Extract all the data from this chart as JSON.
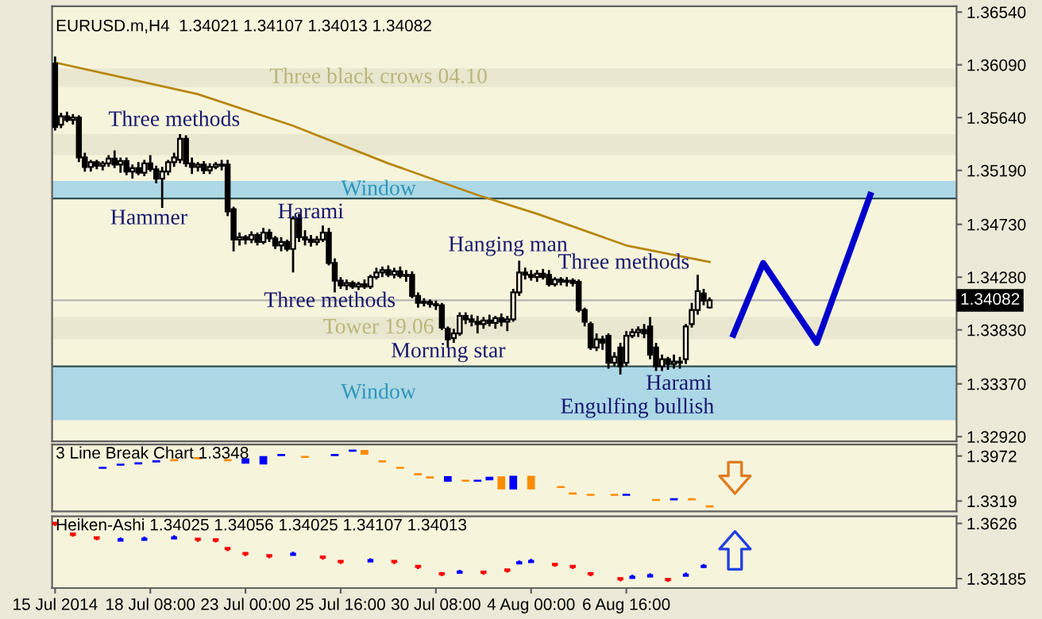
{
  "chart_data": [
    {
      "type": "candlestick",
      "title": "EURUSD.m,H4  1.34021 1.34107 1.34013 1.34082",
      "color": "#000000",
      "categories": [
        null,
        null,
        null,
        null,
        null,
        null,
        null,
        null,
        null,
        null,
        null,
        null,
        null,
        null,
        null,
        null,
        null,
        null,
        null,
        null,
        null,
        null,
        null,
        null,
        null,
        null,
        null,
        null,
        null,
        null,
        null,
        null,
        null,
        null,
        null,
        null,
        null,
        null,
        null,
        null,
        null,
        null,
        null,
        null,
        null,
        null,
        null,
        null,
        null,
        null,
        null,
        null,
        null,
        null,
        null,
        null,
        null,
        null,
        null,
        null,
        null,
        null,
        null,
        null,
        null,
        null,
        null,
        null,
        null,
        null,
        null,
        null,
        null,
        null,
        null,
        null,
        null,
        null,
        null,
        null,
        null,
        null,
        null,
        null,
        null,
        null,
        null,
        null,
        null,
        null,
        null,
        null,
        null,
        null,
        null,
        null,
        null,
        null,
        null,
        null,
        null,
        null,
        null,
        null,
        null,
        null,
        null,
        null,
        null,
        null,
        null,
        null,
        null,
        null,
        null,
        null,
        null,
        null,
        null,
        null,
        null,
        null,
        null,
        null,
        null,
        null,
        null,
        null,
        null,
        null,
        null,
        null,
        null,
        null,
        null,
        null,
        null,
        null,
        null,
        null,
        null,
        null,
        null,
        null,
        null,
        null,
        null,
        null,
        null,
        null,
        null,
        null
      ],
      "ohlc": [
        [
          1.361,
          1.3616,
          1.3553,
          1.3556
        ],
        [
          1.3558,
          1.3568,
          1.3555,
          1.3565
        ],
        [
          1.3565,
          1.3569,
          1.356,
          1.3562
        ],
        [
          1.3562,
          1.3567,
          1.3558,
          1.3564
        ],
        [
          1.3564,
          1.3566,
          1.3526,
          1.353
        ],
        [
          1.353,
          1.3534,
          1.3518,
          1.3522
        ],
        [
          1.3522,
          1.3528,
          1.3518,
          1.3526
        ],
        [
          1.3526,
          1.3528,
          1.352,
          1.3523
        ],
        [
          1.3523,
          1.3527,
          1.3519,
          1.3525
        ],
        [
          1.3525,
          1.3532,
          1.3522,
          1.3529
        ],
        [
          1.3529,
          1.3536,
          1.3521,
          1.3524
        ],
        [
          1.3524,
          1.353,
          1.3517,
          1.3527
        ],
        [
          1.3527,
          1.353,
          1.3515,
          1.3518
        ],
        [
          1.3518,
          1.3524,
          1.3512,
          1.3521
        ],
        [
          1.3521,
          1.3526,
          1.3515,
          1.3517
        ],
        [
          1.3517,
          1.3528,
          1.3514,
          1.3525
        ],
        [
          1.3525,
          1.3532,
          1.3518,
          1.352
        ],
        [
          1.352,
          1.3523,
          1.3508,
          1.3512
        ],
        [
          1.3512,
          1.3522,
          1.3487,
          1.3518
        ],
        [
          1.3518,
          1.3528,
          1.3515,
          1.3526
        ],
        [
          1.3526,
          1.3534,
          1.3522,
          1.353
        ],
        [
          1.3528,
          1.355,
          1.3525,
          1.3546
        ],
        [
          1.3546,
          1.3549,
          1.3522,
          1.3525
        ],
        [
          1.3525,
          1.353,
          1.3516,
          1.3522
        ],
        [
          1.3522,
          1.3526,
          1.3518,
          1.3524
        ],
        [
          1.3524,
          1.3527,
          1.3516,
          1.3519
        ],
        [
          1.3519,
          1.3525,
          1.3516,
          1.3522
        ],
        [
          1.3522,
          1.3526,
          1.352,
          1.3524
        ],
        [
          1.3524,
          1.3528,
          1.3519,
          1.3523
        ],
        [
          1.3524,
          1.3528,
          1.348,
          1.3484
        ],
        [
          1.3486,
          1.3488,
          1.345,
          1.346
        ],
        [
          1.346,
          1.3466,
          1.3455,
          1.3462
        ],
        [
          1.3462,
          1.3464,
          1.3456,
          1.346
        ],
        [
          1.346,
          1.3467,
          1.3457,
          1.3464
        ],
        [
          1.3464,
          1.3466,
          1.3455,
          1.3458
        ],
        [
          1.3458,
          1.347,
          1.3456,
          1.3466
        ],
        [
          1.3466,
          1.3469,
          1.3458,
          1.3461
        ],
        [
          1.3461,
          1.3463,
          1.3452,
          1.3455
        ],
        [
          1.3455,
          1.3462,
          1.345,
          1.3458
        ],
        [
          1.3458,
          1.346,
          1.345,
          1.3452
        ],
        [
          1.3452,
          1.348,
          1.3432,
          1.3478
        ],
        [
          1.3478,
          1.3482,
          1.3458,
          1.3462
        ],
        [
          1.3462,
          1.3468,
          1.3455,
          1.346
        ],
        [
          1.346,
          1.3464,
          1.3454,
          1.3458
        ],
        [
          1.3458,
          1.3463,
          1.3455,
          1.346
        ],
        [
          1.346,
          1.3472,
          1.3458,
          1.3466
        ],
        [
          1.3466,
          1.347,
          1.3438,
          1.344
        ],
        [
          1.344,
          1.3444,
          1.3415,
          1.3425
        ],
        [
          1.3425,
          1.3428,
          1.3418,
          1.3421
        ],
        [
          1.3421,
          1.3426,
          1.3417,
          1.3423
        ],
        [
          1.3423,
          1.3425,
          1.3418,
          1.342
        ],
        [
          1.342,
          1.3424,
          1.3417,
          1.3422
        ],
        [
          1.3422,
          1.3426,
          1.3418,
          1.342
        ],
        [
          1.342,
          1.343,
          1.3418,
          1.3428
        ],
        [
          1.3428,
          1.3436,
          1.3426,
          1.3432
        ],
        [
          1.3432,
          1.3437,
          1.3428,
          1.3434
        ],
        [
          1.3434,
          1.3438,
          1.3428,
          1.343
        ],
        [
          1.343,
          1.3436,
          1.3427,
          1.3433
        ],
        [
          1.3433,
          1.3437,
          1.3427,
          1.3429
        ],
        [
          1.3429,
          1.3434,
          1.3424,
          1.343
        ],
        [
          1.343,
          1.3433,
          1.341,
          1.3412
        ],
        [
          1.3412,
          1.3415,
          1.3402,
          1.3406
        ],
        [
          1.3406,
          1.341,
          1.3403,
          1.3407
        ],
        [
          1.3407,
          1.3409,
          1.3402,
          1.3405
        ],
        [
          1.3405,
          1.3408,
          1.34,
          1.3404
        ],
        [
          1.3404,
          1.3406,
          1.3383,
          1.3385
        ],
        [
          1.3384,
          1.3386,
          1.3368,
          1.3375
        ],
        [
          1.3376,
          1.3384,
          1.3372,
          1.338
        ],
        [
          1.338,
          1.3398,
          1.3378,
          1.3395
        ],
        [
          1.3395,
          1.3398,
          1.3388,
          1.3392
        ],
        [
          1.3392,
          1.3396,
          1.3386,
          1.339
        ],
        [
          1.339,
          1.3395,
          1.338,
          1.3388
        ],
        [
          1.3388,
          1.3394,
          1.3384,
          1.3391
        ],
        [
          1.3391,
          1.3396,
          1.3386,
          1.3389
        ],
        [
          1.3389,
          1.3395,
          1.3384,
          1.3393
        ],
        [
          1.3393,
          1.3397,
          1.3386,
          1.339
        ],
        [
          1.339,
          1.3395,
          1.3382,
          1.3392
        ],
        [
          1.3392,
          1.3418,
          1.339,
          1.3415
        ],
        [
          1.3415,
          1.3442,
          1.3412,
          1.3432
        ],
        [
          1.3432,
          1.3436,
          1.3426,
          1.343
        ],
        [
          1.343,
          1.3434,
          1.3425,
          1.3428
        ],
        [
          1.3428,
          1.3434,
          1.3424,
          1.3431
        ],
        [
          1.3431,
          1.3435,
          1.3426,
          1.3428
        ],
        [
          1.343,
          1.3434,
          1.342,
          1.3422
        ],
        [
          1.3422,
          1.3428,
          1.342,
          1.3426
        ],
        [
          1.3426,
          1.3428,
          1.3421,
          1.3424
        ],
        [
          1.3424,
          1.3428,
          1.342,
          1.3425
        ],
        [
          1.3425,
          1.3427,
          1.342,
          1.3423
        ],
        [
          1.3424,
          1.3426,
          1.3398,
          1.34
        ],
        [
          1.34,
          1.3402,
          1.3386,
          1.339
        ],
        [
          1.3388,
          1.339,
          1.3366,
          1.3368
        ],
        [
          1.3368,
          1.338,
          1.3365,
          1.3375
        ],
        [
          1.3375,
          1.3378,
          1.3366,
          1.3372
        ],
        [
          1.3378,
          1.338,
          1.335,
          1.3355
        ],
        [
          1.3355,
          1.3364,
          1.3352,
          1.336
        ],
        [
          1.3368,
          1.3372,
          1.3345,
          1.3352
        ],
        [
          1.3355,
          1.3382,
          1.3352,
          1.3378
        ],
        [
          1.3378,
          1.3384,
          1.3376,
          1.3381
        ],
        [
          1.3381,
          1.3386,
          1.3377,
          1.3383
        ],
        [
          1.3383,
          1.3388,
          1.3376,
          1.338
        ],
        [
          1.3386,
          1.3394,
          1.3358,
          1.3362
        ],
        [
          1.3368,
          1.3372,
          1.3348,
          1.3352
        ],
        [
          1.3352,
          1.3362,
          1.3348,
          1.3358
        ],
        [
          1.3358,
          1.336,
          1.3349,
          1.3354
        ],
        [
          1.3354,
          1.3362,
          1.335,
          1.3356
        ],
        [
          1.3356,
          1.336,
          1.335,
          1.3355
        ],
        [
          1.3358,
          1.3388,
          1.3354,
          1.3386
        ],
        [
          1.3388,
          1.3406,
          1.3385,
          1.34
        ],
        [
          1.34,
          1.343,
          1.3396,
          1.3416
        ],
        [
          1.3414,
          1.3418,
          1.3404,
          1.3408
        ],
        [
          1.34021,
          1.34107,
          1.34013,
          1.34082
        ],
        null,
        null,
        null,
        null,
        null,
        null,
        null,
        null,
        null,
        null,
        null,
        null,
        null,
        null,
        null,
        null,
        null,
        null,
        null,
        null,
        null,
        null,
        null,
        null,
        null,
        null,
        null,
        null,
        null,
        null,
        null,
        null,
        null,
        null,
        null,
        null,
        null,
        null,
        null,
        null,
        null
      ],
      "series": [
        {
          "type": "line",
          "color": "#b8860b",
          "values": [
            1.3611,
            null,
            null,
            null,
            null,
            null,
            null,
            null,
            null,
            null,
            null,
            null,
            null,
            null,
            null,
            null,
            null,
            null,
            null,
            null,
            null,
            null,
            null,
            null,
            1.3584,
            null,
            null,
            null,
            null,
            null,
            null,
            null,
            null,
            null,
            null,
            null,
            null,
            null,
            null,
            null,
            1.3557,
            null,
            null,
            null,
            null,
            null,
            null,
            null,
            null,
            null,
            null,
            null,
            null,
            null,
            null,
            null,
            1.3525,
            null,
            null,
            null,
            null,
            null,
            null,
            null,
            null,
            null,
            null,
            null,
            null,
            null,
            null,
            1.3498,
            null,
            null,
            null,
            null,
            null,
            null,
            null,
            null,
            null,
            1.3482,
            null,
            null,
            null,
            null,
            null,
            null,
            null,
            null,
            null,
            null,
            null,
            null,
            null,
            null,
            1.3455,
            null,
            null,
            null,
            null,
            null,
            null,
            null,
            null,
            null,
            null,
            null,
            null,
            null,
            1.3441,
            null,
            null,
            null,
            null,
            null,
            null,
            null,
            null,
            null,
            null,
            null,
            null,
            null,
            null,
            null,
            null,
            null,
            null,
            null,
            null,
            null,
            null,
            null,
            null,
            null,
            null,
            null,
            null,
            null,
            null,
            null,
            null,
            null,
            null,
            null,
            null,
            null,
            null,
            null,
            null,
            null
          ]
        },
        {
          "type": "line",
          "color": "#0000cc",
          "values": [
            null,
            null,
            null,
            null,
            null,
            null,
            null,
            null,
            null,
            null,
            null,
            null,
            null,
            null,
            null,
            null,
            null,
            null,
            null,
            null,
            null,
            null,
            null,
            null,
            null,
            null,
            null,
            null,
            null,
            null,
            null,
            null,
            null,
            null,
            null,
            null,
            null,
            null,
            null,
            null,
            null,
            null,
            null,
            null,
            null,
            null,
            null,
            null,
            null,
            null,
            null,
            null,
            null,
            null,
            null,
            null,
            null,
            null,
            null,
            null,
            null,
            null,
            null,
            null,
            null,
            null,
            null,
            null,
            null,
            null,
            null,
            null,
            null,
            null,
            null,
            null,
            null,
            null,
            null,
            null,
            null,
            null,
            null,
            null,
            null,
            null,
            null,
            null,
            null,
            null,
            null,
            null,
            null,
            null,
            null,
            null,
            null,
            null,
            null,
            null,
            null,
            null,
            null,
            null,
            null,
            null,
            null,
            null,
            null,
            null,
            null,
            null,
            null,
            null,
            1.3379,
            null,
            null,
            null,
            null,
            1.344,
            null,
            null,
            null,
            null,
            null,
            null,
            null,
            null,
            1.3372,
            null,
            null,
            null,
            null,
            null,
            null,
            null,
            null,
            1.3498,
            null,
            null,
            null,
            null,
            null,
            null,
            null,
            null,
            null,
            null,
            null,
            null,
            null,
            null
          ]
        }
      ],
      "ylim": [
        1.3288,
        1.3659
      ],
      "yticks": [
        {
          "value": 1.3654,
          "label": "1.36540"
        },
        {
          "value": 1.3609,
          "label": "1.36090"
        },
        {
          "value": 1.3564,
          "label": "1.35640"
        },
        {
          "value": 1.3519,
          "label": "1.35190"
        },
        {
          "value": 1.3473,
          "label": "1.34730"
        },
        {
          "value": 1.3428,
          "label": "1.34280"
        },
        {
          "value": 1.3383,
          "label": "1.33830"
        },
        {
          "value": 1.3337,
          "label": "1.33370"
        },
        {
          "value": 1.3292,
          "label": "1.32920"
        }
      ],
      "tick_labels": "y",
      "bands": [
        {
          "axis": "y",
          "from": 1.3495,
          "to": 1.351,
          "color": "#add8e6",
          "label": "Window"
        },
        {
          "axis": "y",
          "from": 1.3306,
          "to": 1.3352,
          "color": "#add8e6",
          "label": "Window"
        },
        {
          "axis": "y",
          "from": 1.359,
          "to": 1.3606,
          "color": "#e9e7cf",
          "label": "Three black crows 04.10"
        },
        {
          "axis": "y",
          "from": 1.3532,
          "to": 1.355,
          "color": "#e9e7cf"
        },
        {
          "axis": "y",
          "from": 1.3375,
          "to": 1.3394,
          "color": "#e9e7cf",
          "label": "Tower 19.06"
        }
      ],
      "ref_lines": [
        {
          "axis": "y",
          "value": 1.34082,
          "label": "1.34082",
          "color": "#b4b4b4"
        },
        {
          "axis": "y",
          "value": 1.3495,
          "color": "#2f4f4f"
        },
        {
          "axis": "y",
          "value": 1.3352,
          "color": "#2f4f4f"
        }
      ],
      "annotations": [
        "Three methods",
        "Hammer",
        "Harami",
        "Three methods",
        "Hanging man",
        "Morning star",
        "Three methods",
        "Harami",
        "Engulfing bullish"
      ]
    },
    {
      "type": "bar",
      "title": "3 Line Break Chart 1.3348",
      "categories": [
        null,
        null,
        null,
        null,
        null,
        null,
        null,
        null,
        null,
        null,
        null,
        null,
        null,
        null,
        null,
        null,
        null,
        null,
        null,
        null,
        null,
        null,
        null,
        null,
        null,
        null,
        null,
        null,
        null,
        null,
        null,
        null,
        null,
        null,
        null,
        null,
        null,
        null,
        null,
        null,
        null,
        null,
        null,
        null,
        null,
        null,
        null,
        null,
        null,
        null,
        null,
        null,
        null,
        null,
        null,
        null,
        null,
        null,
        null,
        null,
        null,
        null,
        null,
        null,
        null,
        null,
        null,
        null,
        null,
        null,
        null,
        null,
        null,
        null,
        null,
        null,
        null,
        null,
        null,
        null,
        null,
        null,
        null,
        null,
        null,
        null,
        null,
        null,
        null,
        null,
        null,
        null,
        null,
        null,
        null,
        null,
        null,
        null,
        null,
        null,
        null,
        null,
        null,
        null,
        null,
        null,
        null,
        null,
        null,
        null,
        null,
        null,
        null,
        null,
        null,
        null,
        null,
        null,
        null,
        null,
        null,
        null,
        null,
        null,
        null,
        null,
        null,
        null,
        null,
        null,
        null,
        null,
        null,
        null,
        null,
        null,
        null,
        null,
        null,
        null,
        null,
        null,
        null,
        null,
        null,
        null,
        null,
        null,
        null,
        null,
        null,
        null
      ],
      "base": [
        null,
        null,
        null,
        null,
        null,
        null,
        null,
        null,
        1.3786,
        null,
        null,
        1.3832,
        null,
        null,
        1.3851,
        null,
        null,
        1.3879,
        null,
        null,
        1.3897,
        null,
        null,
        null,
        1.3925,
        null,
        null,
        null,
        null,
        1.3897,
        null,
        null,
        1.386,
        null,
        null,
        1.3851,
        null,
        null,
        1.3972,
        null,
        null,
        null,
        1.3944,
        null,
        null,
        null,
        null,
        1.3972,
        null,
        null,
        1.4035,
        null,
        1.399,
        null,
        null,
        1.3879,
        null,
        null,
        1.3786,
        null,
        null,
        1.3692,
        null,
        1.3646,
        null,
        null,
        1.3599,
        null,
        null,
        1.3599,
        null,
        1.3599,
        null,
        1.362,
        null,
        1.3487,
        null,
        1.3487,
        null,
        null,
        1.3487,
        null,
        null,
        null,
        null,
        1.3506,
        null,
        1.3413,
        null,
        null,
        1.3394,
        null,
        null,
        null,
        1.3394,
        null,
        1.3394,
        null,
        null,
        null,
        null,
        1.332,
        null,
        null,
        1.333,
        null,
        null,
        1.333,
        null,
        null,
        1.3226,
        null,
        null,
        null,
        null,
        null,
        null,
        null,
        null,
        null,
        null,
        null,
        null,
        null,
        null,
        null,
        null,
        null,
        null,
        null,
        null,
        null,
        null,
        null,
        null,
        null,
        null,
        null,
        null,
        null,
        null,
        null,
        null,
        null,
        null,
        null,
        null,
        null,
        null,
        null,
        null,
        null
      ],
      "values": [
        null,
        null,
        null,
        null,
        null,
        null,
        null,
        null,
        0.003,
        null,
        null,
        0.003,
        null,
        null,
        0.003,
        null,
        null,
        0.003,
        null,
        null,
        0.003,
        null,
        null,
        null,
        0.003,
        null,
        null,
        null,
        null,
        0.003,
        null,
        null,
        0.008,
        null,
        null,
        0.012,
        null,
        null,
        0.003,
        null,
        null,
        null,
        0.003,
        null,
        null,
        null,
        null,
        0.003,
        null,
        null,
        0.003,
        null,
        0.007,
        null,
        null,
        0.003,
        null,
        null,
        0.003,
        null,
        null,
        0.003,
        null,
        0.003,
        null,
        null,
        0.008,
        null,
        null,
        0.003,
        null,
        0.003,
        null,
        0.005,
        null,
        0.019,
        null,
        0.02,
        null,
        null,
        0.02,
        null,
        null,
        null,
        null,
        0.003,
        null,
        0.003,
        null,
        null,
        0.003,
        null,
        null,
        null,
        0.003,
        null,
        0.003,
        null,
        null,
        null,
        null,
        0.003,
        null,
        null,
        0.003,
        null,
        null,
        0.003,
        null,
        null,
        0.003,
        null,
        null,
        null,
        null,
        null,
        null,
        null,
        null,
        null,
        null,
        null,
        null,
        null,
        null,
        null,
        null,
        null,
        null,
        null,
        null,
        null,
        null,
        null,
        null,
        null,
        null,
        null,
        null,
        null,
        null,
        null,
        null,
        null,
        null,
        null,
        null,
        null,
        null,
        null,
        null,
        null
      ],
      "colors": [
        null,
        null,
        null,
        null,
        null,
        null,
        null,
        null,
        "#0000ff",
        null,
        null,
        "#0000ff",
        null,
        null,
        "#0000ff",
        null,
        null,
        "#0000ff",
        null,
        null,
        "#ff8c00",
        null,
        null,
        null,
        "#ff8c00",
        null,
        null,
        null,
        null,
        "#ff8c00",
        null,
        null,
        "#0000ff",
        null,
        null,
        "#0000ff",
        null,
        null,
        "#0000ff",
        null,
        null,
        null,
        "#ff8c00",
        null,
        null,
        null,
        null,
        "#0000ff",
        null,
        null,
        "#0000ff",
        null,
        "#ff8c00",
        null,
        null,
        "#ff8c00",
        null,
        null,
        "#ff8c00",
        null,
        null,
        "#ff8c00",
        null,
        "#ff8c00",
        null,
        null,
        "#0000ff",
        null,
        null,
        "#ff8c00",
        null,
        "#0000ff",
        null,
        "#0000ff",
        null,
        "#ff8c00",
        null,
        "#0000ff",
        null,
        null,
        "#ff8c00",
        null,
        null,
        null,
        null,
        "#ff8c00",
        null,
        "#ff8c00",
        null,
        null,
        "#ff8c00",
        null,
        null,
        null,
        "#ff8c00",
        null,
        "#0000ff",
        null,
        null,
        null,
        null,
        "#ff8c00",
        null,
        null,
        "#0000ff",
        null,
        null,
        "#ff8c00",
        null,
        null,
        "#ff8c00",
        null,
        null,
        null,
        null,
        null,
        null,
        null,
        null,
        null,
        null,
        null,
        null,
        null,
        null,
        null,
        null,
        null,
        null,
        null,
        null,
        null,
        null,
        null,
        null,
        null,
        null,
        null,
        null,
        null,
        null,
        null,
        null,
        null,
        null,
        null,
        null,
        null,
        null,
        null,
        null,
        null
      ],
      "ylim": [
        1.317,
        1.414
      ],
      "yticks": [
        1.3972,
        1.3319
      ],
      "tick_labels": "y"
    },
    {
      "type": "candlestick",
      "title": "Heiken-Ashi 1.34025 1.34056 1.34025 1.34107 1.34013",
      "categories": [
        "15 Jul 2014",
        null,
        null,
        null,
        null,
        null,
        null,
        null,
        null,
        null,
        null,
        null,
        null,
        null,
        null,
        null,
        "18 Jul 08:00",
        null,
        null,
        null,
        null,
        null,
        null,
        null,
        null,
        null,
        null,
        null,
        null,
        null,
        null,
        null,
        "23 Jul 00:00",
        null,
        null,
        null,
        null,
        null,
        null,
        null,
        null,
        null,
        null,
        null,
        null,
        null,
        null,
        null,
        "25 Jul 16:00",
        null,
        null,
        null,
        null,
        null,
        null,
        null,
        null,
        null,
        null,
        null,
        null,
        null,
        null,
        null,
        "30 Jul 08:00",
        null,
        null,
        null,
        null,
        null,
        null,
        null,
        null,
        null,
        null,
        null,
        null,
        null,
        null,
        null,
        "4 Aug 00:00",
        null,
        null,
        null,
        null,
        null,
        null,
        null,
        null,
        null,
        null,
        null,
        null,
        null,
        null,
        null,
        "6 Aug 16:00",
        null,
        null,
        null,
        null,
        null,
        null,
        null,
        null,
        null,
        null,
        null,
        null,
        null,
        null,
        null,
        null,
        null,
        null,
        null,
        null,
        null,
        null,
        null,
        null,
        null,
        null,
        null,
        null,
        null,
        null,
        null,
        null,
        null,
        null,
        null,
        null,
        null,
        null,
        null,
        null,
        null,
        null,
        null,
        null,
        null,
        null,
        null,
        null,
        null,
        null,
        null,
        null,
        null,
        null,
        null
      ],
      "ohlc": [
        [
          1.363,
          1.3632,
          1.3612,
          1.3622
        ],
        null,
        null,
        [
          1.357,
          1.3572,
          1.3552,
          1.3562
        ],
        null,
        null,
        null,
        [
          1.355,
          1.3552,
          1.3532,
          1.3542
        ],
        null,
        null,
        null,
        [
          1.353,
          1.3548,
          1.3528,
          1.3538
        ],
        null,
        null,
        null,
        [
          1.3534,
          1.3552,
          1.3532,
          1.3542
        ],
        null,
        null,
        null,
        null,
        [
          1.3542,
          1.356,
          1.354,
          1.355
        ],
        null,
        null,
        null,
        [
          1.3542,
          1.3544,
          1.3524,
          1.3534
        ],
        null,
        null,
        [
          1.3538,
          1.354,
          1.352,
          1.353
        ],
        null,
        [
          1.349,
          1.3492,
          1.3472,
          1.3482
        ],
        null,
        null,
        [
          1.3462,
          1.3464,
          1.3444,
          1.3454
        ],
        null,
        null,
        null,
        [
          1.345,
          1.3452,
          1.3432,
          1.3442
        ],
        null,
        null,
        null,
        [
          1.345,
          1.3468,
          1.3448,
          1.3458
        ],
        null,
        null,
        null,
        null,
        [
          1.3442,
          1.3444,
          1.3424,
          1.3434
        ],
        null,
        null,
        [
          1.3418,
          1.342,
          1.34,
          1.341
        ],
        null,
        null,
        null,
        null,
        [
          1.3414,
          1.3432,
          1.3412,
          1.3422
        ],
        null,
        null,
        null,
        [
          1.3418,
          1.342,
          1.34,
          1.341
        ],
        null,
        null,
        null,
        [
          1.339,
          1.3392,
          1.3372,
          1.3382
        ],
        null,
        null,
        null,
        [
          1.335,
          1.3352,
          1.3332,
          1.3342
        ],
        null,
        null,
        [
          1.335,
          1.3368,
          1.3348,
          1.3358
        ],
        null,
        null,
        null,
        [
          1.3358,
          1.336,
          1.334,
          1.335
        ],
        null,
        null,
        null,
        [
          1.337,
          1.3372,
          1.3352,
          1.3362
        ],
        null,
        [
          1.3402,
          1.342,
          1.34,
          1.341
        ],
        null,
        [
          1.341,
          1.3428,
          1.3408,
          1.3418
        ],
        null,
        null,
        null,
        [
          1.3402,
          1.3404,
          1.3384,
          1.3394
        ],
        null,
        null,
        [
          1.339,
          1.3392,
          1.3372,
          1.3382
        ],
        null,
        null,
        [
          1.335,
          1.3352,
          1.3332,
          1.3342
        ],
        null,
        null,
        null,
        null,
        [
          1.3322,
          1.3324,
          1.3304,
          1.3314
        ],
        null,
        [
          1.3322,
          1.334,
          1.332,
          1.333
        ],
        null,
        null,
        [
          1.333,
          1.3348,
          1.3328,
          1.3338
        ],
        null,
        null,
        [
          1.3318,
          1.332,
          1.33,
          1.331
        ],
        null,
        null,
        [
          1.3334,
          1.3352,
          1.3332,
          1.3342
        ],
        null,
        null,
        [
          1.3382,
          1.34,
          1.338,
          1.339
        ],
        null,
        null,
        null,
        null,
        null,
        null,
        null,
        null,
        null,
        null,
        null,
        null,
        null,
        null,
        null,
        null,
        null,
        null,
        null,
        null,
        null,
        null,
        null,
        null,
        null,
        null,
        null,
        null,
        null,
        null,
        null,
        null,
        null,
        null,
        null,
        null,
        null,
        null,
        null,
        null,
        null,
        null
      ],
      "colors": [
        "#ff0000",
        null,
        null,
        "#ff0000",
        null,
        null,
        null,
        "#ff0000",
        null,
        null,
        null,
        "#0000ff",
        null,
        null,
        null,
        "#0000ff",
        null,
        null,
        null,
        null,
        "#0000ff",
        null,
        null,
        null,
        "#ff0000",
        null,
        null,
        "#ff0000",
        null,
        "#ff0000",
        null,
        null,
        "#ff0000",
        null,
        null,
        null,
        "#ff0000",
        null,
        null,
        null,
        "#0000ff",
        null,
        null,
        null,
        null,
        "#ff0000",
        null,
        null,
        "#ff0000",
        null,
        null,
        null,
        null,
        "#0000ff",
        null,
        null,
        null,
        "#ff0000",
        null,
        null,
        null,
        "#ff0000",
        null,
        null,
        null,
        "#ff0000",
        null,
        null,
        "#0000ff",
        null,
        null,
        null,
        "#ff0000",
        null,
        null,
        null,
        "#ff0000",
        null,
        "#0000ff",
        null,
        "#0000ff",
        null,
        null,
        null,
        "#ff0000",
        null,
        null,
        "#ff0000",
        null,
        null,
        "#ff0000",
        null,
        null,
        null,
        null,
        "#ff0000",
        null,
        "#0000ff",
        null,
        null,
        "#0000ff",
        null,
        null,
        "#ff0000",
        null,
        null,
        "#0000ff",
        null,
        null,
        "#0000ff",
        null,
        null,
        null,
        null,
        null,
        null,
        null,
        null,
        null,
        null,
        null,
        null,
        null,
        null,
        null,
        null,
        null,
        null,
        null,
        null,
        null,
        null,
        null,
        null,
        null,
        null,
        null,
        null,
        null,
        null,
        null,
        null,
        null,
        null,
        null,
        null,
        null,
        null,
        null,
        null,
        null,
        null
      ],
      "ylim": [
        1.3266,
        1.3666
      ],
      "yticks": [
        1.3626,
        {
          "value": 1.33185,
          "label": "1.33185"
        }
      ]
    }
  ]
}
